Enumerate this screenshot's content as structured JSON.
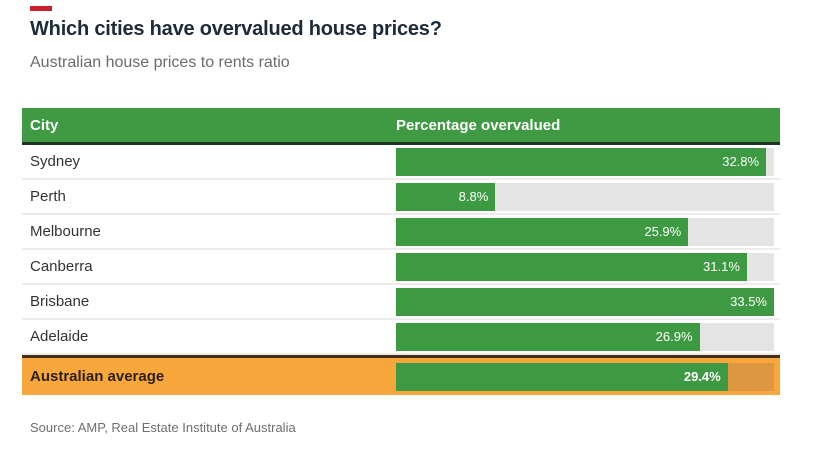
{
  "page": {
    "title": "Which cities have overvalued house prices?",
    "subtitle": "Australian house prices to rents ratio",
    "source": "Source: AMP, Real Estate Institute of Australia"
  },
  "table": {
    "headers": {
      "city": "City",
      "value": "Percentage overvalued"
    }
  },
  "chart_data": {
    "type": "bar",
    "orientation": "horizontal",
    "title": "Which cities have overvalued house prices?",
    "subtitle": "Australian house prices to rents ratio",
    "source": "Source: AMP, Real Estate Institute of Australia",
    "categories": [
      "Sydney",
      "Perth",
      "Melbourne",
      "Canberra",
      "Brisbane",
      "Adelaide",
      "Australian average"
    ],
    "values": [
      32.8,
      8.8,
      25.9,
      31.1,
      33.5,
      26.9,
      29.4
    ],
    "labels": [
      "32.8%",
      "8.8%",
      "25.9%",
      "31.1%",
      "33.5%",
      "26.9%",
      "29.4%"
    ],
    "xlim": [
      0,
      33.5
    ],
    "unit": "%",
    "grid": false,
    "legend": false,
    "highlight_category": "Australian average"
  },
  "colors": {
    "header_green": "#3f9a43",
    "bar_green": "#3e9a42",
    "track_gray": "#e4e4e4",
    "average_row_orange": "#f8a73c",
    "average_track_orange": "#dd9741",
    "average_border_brown": "#443019",
    "header_border_dark": "#1d3520",
    "title_navy": "#1c2b39",
    "accent_red": "#c8202f"
  }
}
